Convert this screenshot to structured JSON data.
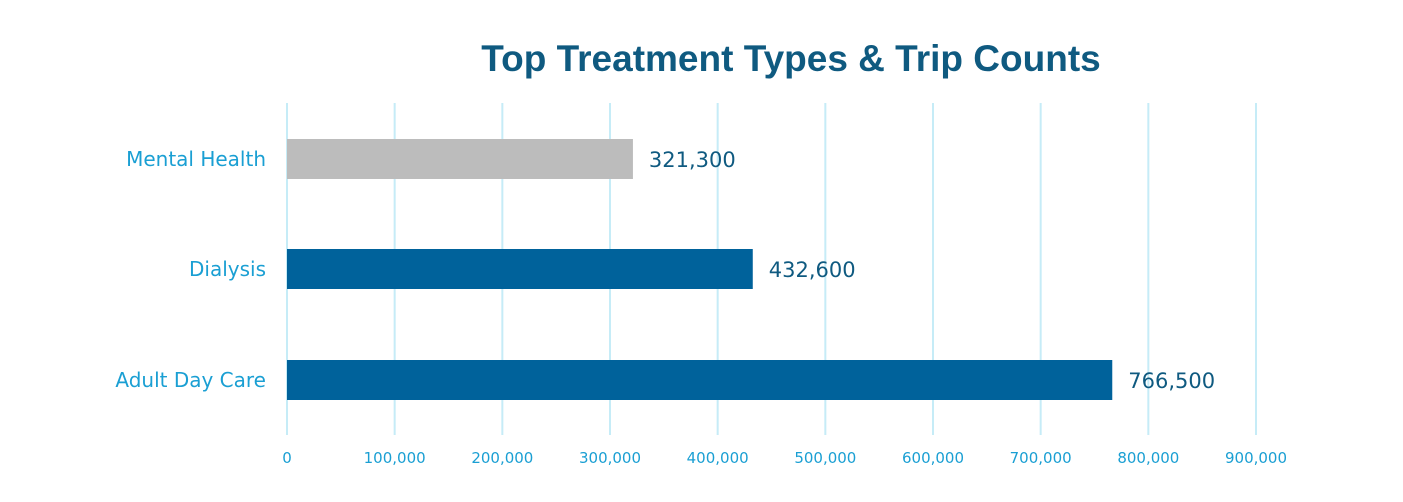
{
  "chart_data": {
    "type": "bar",
    "orientation": "horizontal",
    "title": "Top Treatment Types & Trip Counts",
    "xlabel": "",
    "ylabel": "",
    "categories": [
      "Mental Health",
      "Dialysis",
      "Adult Day Care"
    ],
    "values": [
      321300,
      432600,
      766500
    ],
    "value_labels": [
      "321,300",
      "432,600",
      "766,500"
    ],
    "bar_colors": [
      "#bcbcbc",
      "#00629b",
      "#00629b"
    ],
    "xlim": [
      0,
      900000
    ],
    "xticks": [
      0,
      100000,
      200000,
      300000,
      400000,
      500000,
      600000,
      700000,
      800000,
      900000
    ],
    "xtick_labels": [
      "0",
      "100,000",
      "200,000",
      "300,000",
      "400,000",
      "500,000",
      "600,000",
      "700,000",
      "800,000",
      "900,000"
    ],
    "grid": true,
    "legend": "none"
  },
  "colors": {
    "title": "#0f5a80",
    "category_label": "#1a9fd3",
    "tick_label": "#1a9fd3",
    "data_label": "#0f5a80",
    "grid": "#c6ecf7"
  }
}
